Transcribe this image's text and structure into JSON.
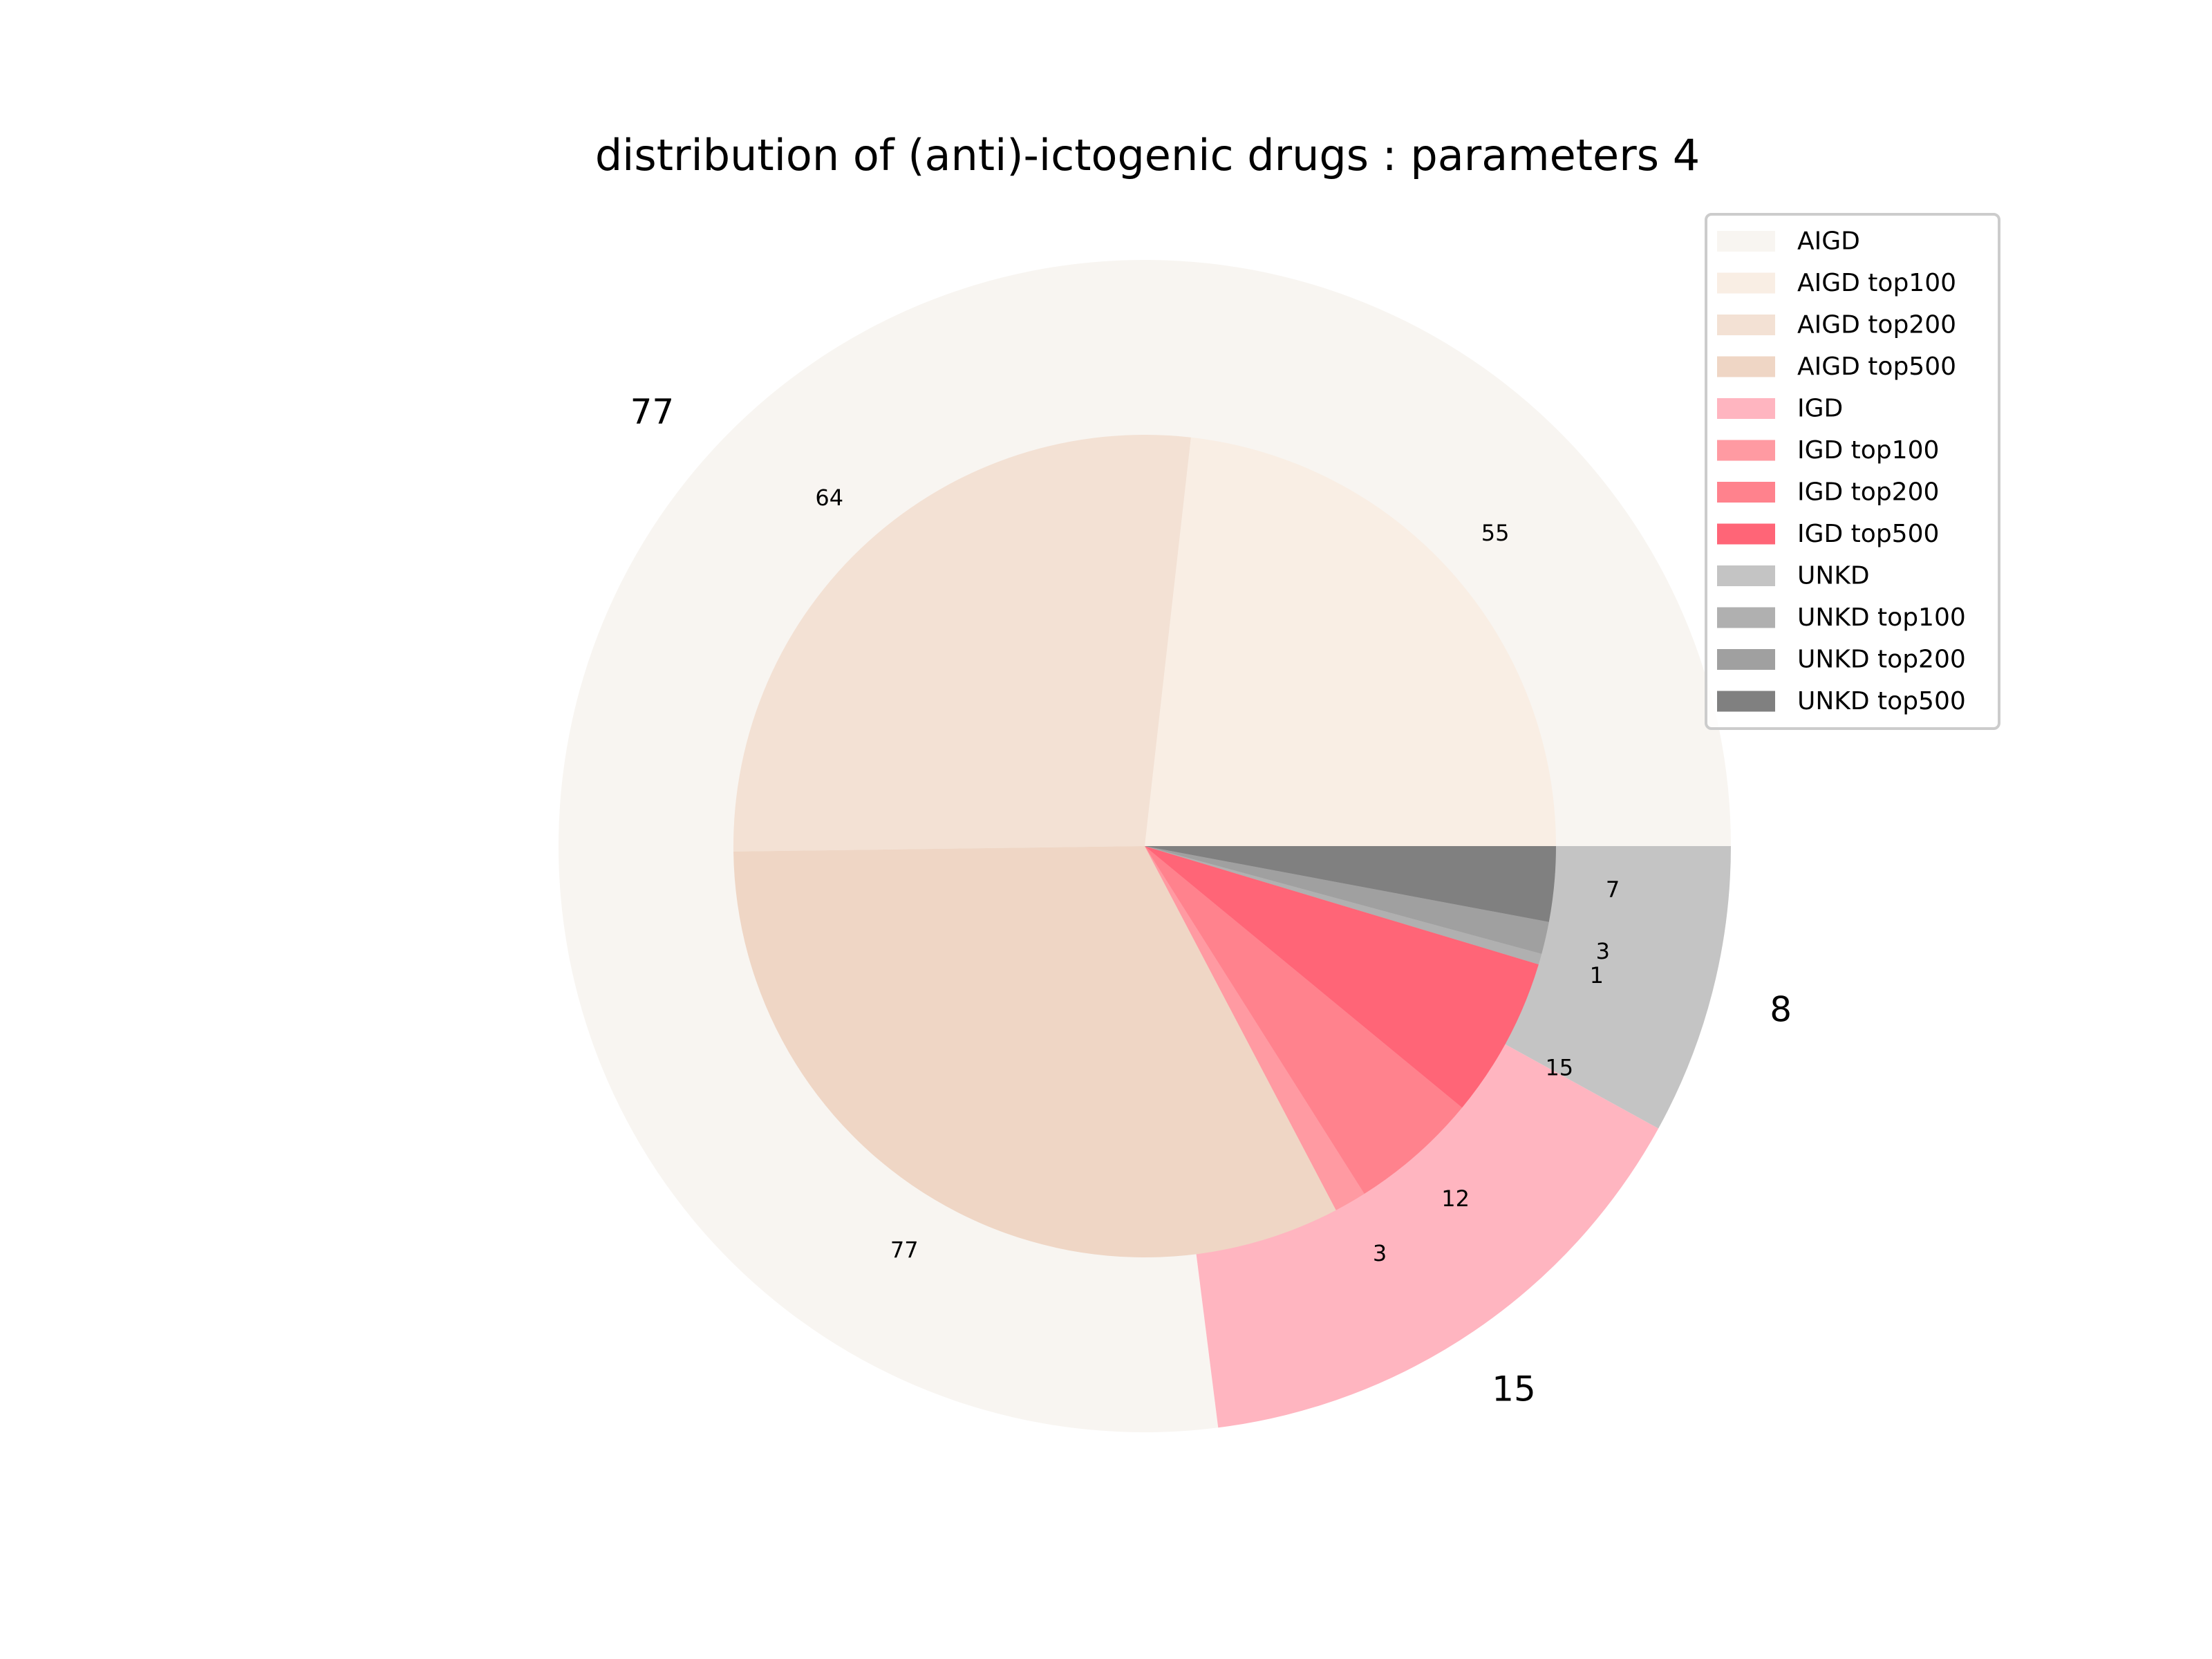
{
  "chart_data": {
    "type": "pie",
    "title": "distribution of (anti)-ictogenic drugs : parameters 4",
    "outer": [
      {
        "name": "AIGD",
        "value": 77,
        "color": "#f8f5f1"
      },
      {
        "name": "IGD",
        "value": 15,
        "color": "#ffb5c0"
      },
      {
        "name": "UNKD",
        "value": 8,
        "color": "#c4c4c4"
      }
    ],
    "inner": [
      {
        "name": "AIGD top100",
        "value": 55,
        "color": "#f9eee4"
      },
      {
        "name": "AIGD top200",
        "value": 64,
        "color": "#f3e1d4"
      },
      {
        "name": "AIGD top500",
        "value": 77,
        "color": "#efd6c5"
      },
      {
        "name": "IGD top100",
        "value": 3,
        "color": "#ff9aa2"
      },
      {
        "name": "IGD top200",
        "value": 12,
        "color": "#ff828d"
      },
      {
        "name": "IGD top500",
        "value": 15,
        "color": "#ff6577"
      },
      {
        "name": "UNKD top100",
        "value": 1,
        "color": "#b0b0b0"
      },
      {
        "name": "UNKD top200",
        "value": 3,
        "color": "#a0a0a0"
      },
      {
        "name": "UNKD top500",
        "value": 7,
        "color": "#808080"
      }
    ],
    "legend": [
      {
        "label": "AIGD",
        "color": "#f8f5f1"
      },
      {
        "label": "AIGD top100",
        "color": "#f9eee4"
      },
      {
        "label": "AIGD top200",
        "color": "#f3e1d4"
      },
      {
        "label": "AIGD top500",
        "color": "#efd6c5"
      },
      {
        "label": "IGD",
        "color": "#ffb5c0"
      },
      {
        "label": "IGD top100",
        "color": "#ff9aa2"
      },
      {
        "label": "IGD top200",
        "color": "#ff828d"
      },
      {
        "label": "IGD top500",
        "color": "#ff6577"
      },
      {
        "label": "UNKD",
        "color": "#c4c4c4"
      },
      {
        "label": "UNKD top100",
        "color": "#b0b0b0"
      },
      {
        "label": "UNKD top200",
        "color": "#a0a0a0"
      },
      {
        "label": "UNKD top500",
        "color": "#808080"
      }
    ],
    "legend_position": "upper-right"
  }
}
